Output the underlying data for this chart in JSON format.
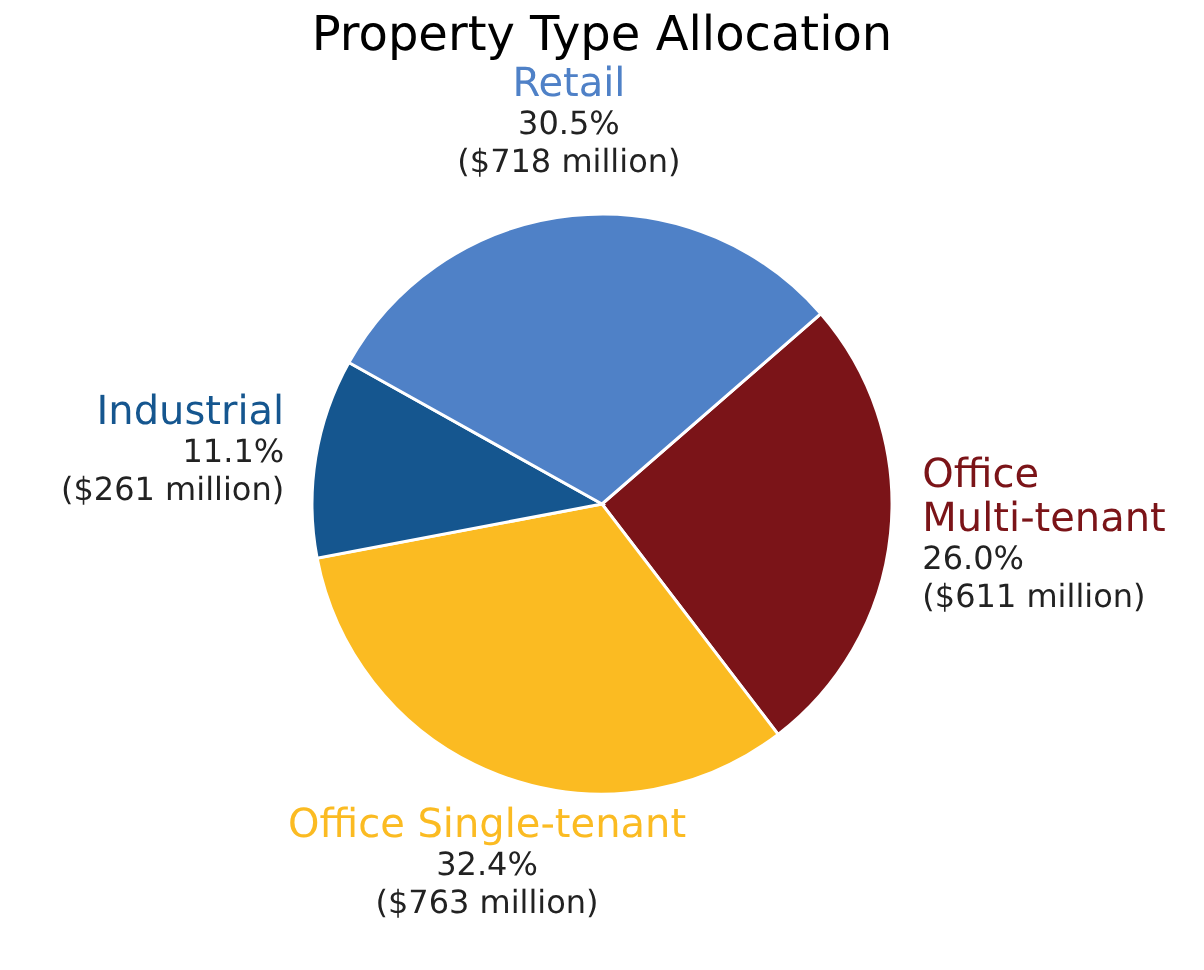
{
  "chart_data": {
    "type": "pie",
    "title": "Property Type Allocation",
    "categories": [
      "Office\nMulti-tenant",
      "Office Single-tenant",
      "Industrial",
      "Retail"
    ],
    "values": [
      26.0,
      32.4,
      11.1,
      30.5
    ],
    "colors": [
      "#7b1418",
      "#fbbb22",
      "#15568f",
      "#4f81c7"
    ],
    "value_labels": [
      "26.0%\n($611 million)",
      "32.4%\n($763 million)",
      "11.1%\n($261 million)",
      "30.5%\n($718 million)"
    ]
  }
}
